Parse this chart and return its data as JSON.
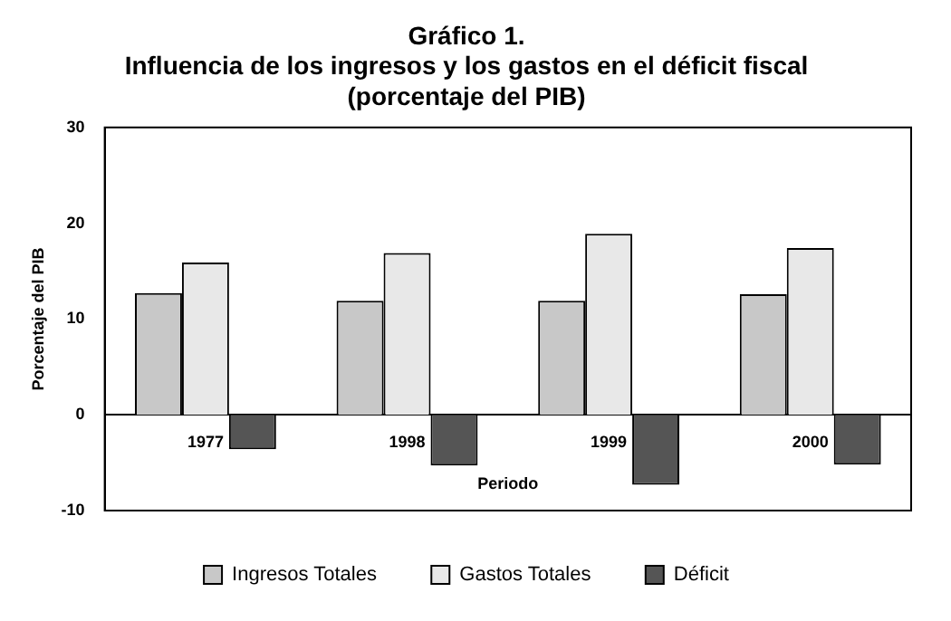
{
  "chart_data": {
    "type": "bar",
    "title": "Gráfico 1.",
    "subtitle": "Influencia de los ingresos y los gastos en el déficit fiscal (porcentaje del PIB)",
    "xlabel": "Periodo",
    "ylabel": "Porcentaje del PIB",
    "categories": [
      "1977",
      "1998",
      "1999",
      "2000"
    ],
    "series": [
      {
        "name": "Ingresos Totales",
        "color": "#c8c8c8",
        "values": [
          12.7,
          11.9,
          11.9,
          12.6
        ]
      },
      {
        "name": "Gastos Totales",
        "color": "#e8e8e8",
        "values": [
          15.9,
          16.9,
          18.9,
          17.4
        ]
      },
      {
        "name": "Déficit",
        "color": "#555555",
        "values": [
          -3.6,
          -5.3,
          -7.3,
          -5.2
        ]
      }
    ],
    "ylim": [
      -10,
      30
    ],
    "yticks": [
      -10,
      0,
      10,
      20,
      30
    ],
    "grid": false,
    "legend": "bottom"
  }
}
